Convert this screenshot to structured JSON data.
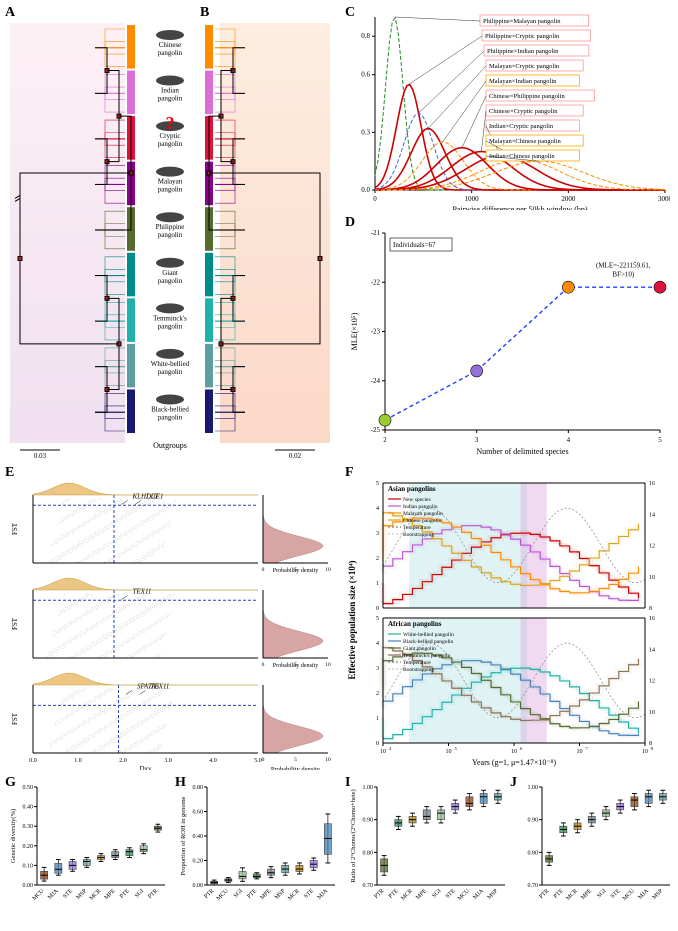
{
  "panels": {
    "A": {
      "label": "A"
    },
    "B": {
      "label": "B"
    },
    "C": {
      "label": "C",
      "ylabel": "",
      "xlabel": "Pairwise difference per 50kb window (bp)",
      "xlim": [
        0,
        3000
      ],
      "ylim": [
        0,
        0.9
      ],
      "xticks": [
        0,
        1000,
        2000,
        3000
      ],
      "yticks": [
        0.0,
        0.3,
        0.6,
        0.8
      ],
      "curves": [
        {
          "peak_x": 200,
          "peak_y": 0.9,
          "color": "#228b22",
          "dash": "4,2",
          "label": "Philippine×Malayan pangolin",
          "box_color": "#f99"
        },
        {
          "peak_x": 350,
          "peak_y": 0.55,
          "color": "#cc0000",
          "dash": "none",
          "label": "Philippine×Cryptic pangolin",
          "box_color": "#f99"
        },
        {
          "peak_x": 450,
          "peak_y": 0.4,
          "color": "#4169e1",
          "dash": "4,2",
          "label": "Philippine×Indian pangolin",
          "box_color": "#f99"
        },
        {
          "peak_x": 550,
          "peak_y": 0.32,
          "color": "#cc0000",
          "dash": "none",
          "label": "Malayan×Cryptic pangolin",
          "box_color": "#f99"
        },
        {
          "peak_x": 700,
          "peak_y": 0.25,
          "color": "#ff8c00",
          "dash": "4,2",
          "label": "Malayan×Indian pangolin",
          "box_color": "#fa0"
        },
        {
          "peak_x": 900,
          "peak_y": 0.22,
          "color": "#cc0000",
          "dash": "none",
          "label": "Chinese×Philippine pangolin",
          "box_color": "#f99"
        },
        {
          "peak_x": 1100,
          "peak_y": 0.2,
          "color": "#cc0000",
          "dash": "none",
          "label": "Chinese×Cryptic pangolin",
          "box_color": "#f99"
        },
        {
          "peak_x": 1300,
          "peak_y": 0.18,
          "color": "#cc0000",
          "dash": "none",
          "label": "Indian×Cryptic pangolin",
          "box_color": "#f99"
        },
        {
          "peak_x": 1500,
          "peak_y": 0.16,
          "color": "#ff8c00",
          "dash": "4,2",
          "label": "Malayan×Chinese pangolin",
          "box_color": "#fa0"
        },
        {
          "peak_x": 1700,
          "peak_y": 0.15,
          "color": "#ff8c00",
          "dash": "4,2",
          "label": "Indian×Chinese pangolin",
          "box_color": "#fa0"
        }
      ]
    },
    "D": {
      "label": "D",
      "ylabel": "MLE(×10⁵)",
      "xlabel": "Number of delimited species",
      "xlim": [
        2,
        5
      ],
      "ylim": [
        -25,
        -21
      ],
      "xticks": [
        2,
        3,
        4,
        5
      ],
      "yticks": [
        -25,
        -24,
        -23,
        -22,
        -21
      ],
      "points": [
        {
          "x": 2,
          "y": -24.8,
          "color": "#9acd32"
        },
        {
          "x": 3,
          "y": -23.8,
          "color": "#9370db"
        },
        {
          "x": 4,
          "y": -22.1,
          "color": "#ff8c00"
        },
        {
          "x": 5,
          "y": -22.1,
          "color": "#dc143c"
        }
      ],
      "annotation": "(MLE=-221159.61,\nBF>10)",
      "box_label": "Individuals=67"
    },
    "E": {
      "label": "E",
      "subplots": [
        {
          "genes": [
            "KLHL10",
            "DCE1"
          ],
          "fst_thresh": 0.85,
          "dxy_thresh": 1.8,
          "ylabel": "FST",
          "xlabel": "Dxy"
        },
        {
          "genes": [
            "TEX11"
          ],
          "fst_thresh": 0.85,
          "dxy_thresh": 1.8,
          "ylabel": "FST",
          "xlabel": "Dxy"
        },
        {
          "genes": [
            "SPATA5",
            "TEX11"
          ],
          "fst_thresh": 0.7,
          "dxy_thresh": 1.9,
          "ylabel": "FST",
          "xlabel": "Dxy"
        }
      ],
      "density_label": "Probability density",
      "xlim": [
        0,
        5
      ],
      "ylim": [
        0,
        1
      ],
      "xticks": [
        0.0,
        1.0,
        2.0,
        3.0,
        4.0,
        5.0
      ],
      "top_color": "#e8b864",
      "side_color": "#c88080"
    },
    "F": {
      "label": "F",
      "ylabel": "Effective population size (×10⁴)",
      "xlabel": "Years (g=1, μ=1.47×10⁻⁸)",
      "xlim_log": [
        4,
        8
      ],
      "ylim": [
        0,
        5
      ],
      "asian": {
        "title": "Asian pangolins",
        "legend": [
          "New species",
          "Indian pangolin",
          "Malayan pangolin",
          "Chinese pangolin",
          "Temperature",
          "Bootstrapping"
        ],
        "colors": [
          "#cc0000",
          "#ba55d3",
          "#ff8c00",
          "#daa520",
          "#888888",
          "#cccccc"
        ]
      },
      "african": {
        "title": "African pangolins",
        "legend": [
          "White-bellied pangolin",
          "Black-bellied pangolin",
          "Giant pangolin",
          "Temminck's pangolin",
          "Temperature",
          "Bootstrapping"
        ],
        "colors": [
          "#20b2aa",
          "#4682b4",
          "#556b2f",
          "#8b7355",
          "#888888",
          "#cccccc"
        ]
      },
      "temp_ylim": [
        8,
        16
      ],
      "shade1": "#b0e0e6",
      "shade2": "#dda0dd"
    },
    "G": {
      "label": "G",
      "ylabel": "Genetic diversity(%)",
      "ylim": [
        0,
        0.5
      ],
      "yticks": [
        0.0,
        0.1,
        0.2,
        0.3,
        0.4,
        0.5
      ],
      "categories": [
        "MCU",
        "MJA",
        "STE",
        "MSP",
        "MCR",
        "MPE",
        "PTE",
        "SGI",
        "PTR"
      ],
      "boxes": [
        {
          "q1": 0.03,
          "med": 0.05,
          "q3": 0.07,
          "lo": 0.02,
          "hi": 0.09,
          "color": "#8b4513"
        },
        {
          "q1": 0.06,
          "med": 0.08,
          "q3": 0.11,
          "lo": 0.05,
          "hi": 0.13,
          "color": "#4682b4"
        },
        {
          "q1": 0.08,
          "med": 0.1,
          "q3": 0.12,
          "lo": 0.07,
          "hi": 0.13,
          "color": "#9370db"
        },
        {
          "q1": 0.1,
          "med": 0.12,
          "q3": 0.13,
          "lo": 0.09,
          "hi": 0.14,
          "color": "#5f9ea0"
        },
        {
          "q1": 0.13,
          "med": 0.14,
          "q3": 0.15,
          "lo": 0.12,
          "hi": 0.16,
          "color": "#b8860b"
        },
        {
          "q1": 0.14,
          "med": 0.15,
          "q3": 0.17,
          "lo": 0.13,
          "hi": 0.18,
          "color": "#708090"
        },
        {
          "q1": 0.15,
          "med": 0.17,
          "q3": 0.18,
          "lo": 0.14,
          "hi": 0.19,
          "color": "#2e8b57"
        },
        {
          "q1": 0.17,
          "med": 0.18,
          "q3": 0.2,
          "lo": 0.16,
          "hi": 0.21,
          "color": "#8fbc8f"
        },
        {
          "q1": 0.28,
          "med": 0.29,
          "q3": 0.3,
          "lo": 0.27,
          "hi": 0.31,
          "color": "#556b2f"
        }
      ]
    },
    "H": {
      "label": "H",
      "ylabel": "Proportion of ROH in genome",
      "ylim": [
        0,
        0.8
      ],
      "yticks": [
        0.0,
        0.2,
        0.4,
        0.6,
        0.8
      ],
      "categories": [
        "PTR",
        "MCU",
        "SGI",
        "PTE",
        "MPE",
        "MSP",
        "MCR",
        "STE",
        "MJA"
      ],
      "boxes": [
        {
          "q1": 0.01,
          "med": 0.02,
          "q3": 0.03,
          "lo": 0.0,
          "hi": 0.04,
          "color": "#556b2f"
        },
        {
          "q1": 0.03,
          "med": 0.04,
          "q3": 0.05,
          "lo": 0.02,
          "hi": 0.06,
          "color": "#8b4513"
        },
        {
          "q1": 0.05,
          "med": 0.07,
          "q3": 0.11,
          "lo": 0.03,
          "hi": 0.14,
          "color": "#8fbc8f"
        },
        {
          "q1": 0.06,
          "med": 0.07,
          "q3": 0.09,
          "lo": 0.05,
          "hi": 0.1,
          "color": "#2e8b57"
        },
        {
          "q1": 0.08,
          "med": 0.1,
          "q3": 0.13,
          "lo": 0.06,
          "hi": 0.15,
          "color": "#708090"
        },
        {
          "q1": 0.1,
          "med": 0.13,
          "q3": 0.16,
          "lo": 0.08,
          "hi": 0.18,
          "color": "#5f9ea0"
        },
        {
          "q1": 0.11,
          "med": 0.13,
          "q3": 0.16,
          "lo": 0.09,
          "hi": 0.18,
          "color": "#b8860b"
        },
        {
          "q1": 0.14,
          "med": 0.17,
          "q3": 0.2,
          "lo": 0.12,
          "hi": 0.22,
          "color": "#9370db"
        },
        {
          "q1": 0.25,
          "med": 0.38,
          "q3": 0.5,
          "lo": 0.18,
          "hi": 0.58,
          "color": "#4682b4"
        }
      ]
    },
    "I": {
      "label": "I",
      "ylabel": "Ratio of 2°Chomo/(2°Chomo+hete)",
      "ylim": [
        0.7,
        1.0
      ],
      "yticks": [
        0.7,
        0.8,
        0.9,
        1.0
      ],
      "categories": [
        "PTR",
        "PTE",
        "MCR",
        "MPE",
        "SGI",
        "STE",
        "MCU",
        "MJA",
        "MSP"
      ],
      "boxes": [
        {
          "q1": 0.74,
          "med": 0.76,
          "q3": 0.78,
          "lo": 0.73,
          "hi": 0.79,
          "color": "#556b2f"
        },
        {
          "q1": 0.88,
          "med": 0.89,
          "q3": 0.9,
          "lo": 0.87,
          "hi": 0.91,
          "color": "#2e8b57"
        },
        {
          "q1": 0.89,
          "med": 0.9,
          "q3": 0.91,
          "lo": 0.88,
          "hi": 0.92,
          "color": "#b8860b"
        },
        {
          "q1": 0.9,
          "med": 0.91,
          "q3": 0.93,
          "lo": 0.89,
          "hi": 0.94,
          "color": "#708090"
        },
        {
          "q1": 0.9,
          "med": 0.92,
          "q3": 0.93,
          "lo": 0.89,
          "hi": 0.94,
          "color": "#8fbc8f"
        },
        {
          "q1": 0.93,
          "med": 0.94,
          "q3": 0.95,
          "lo": 0.92,
          "hi": 0.96,
          "color": "#9370db"
        },
        {
          "q1": 0.94,
          "med": 0.95,
          "q3": 0.97,
          "lo": 0.93,
          "hi": 0.98,
          "color": "#8b4513"
        },
        {
          "q1": 0.95,
          "med": 0.97,
          "q3": 0.98,
          "lo": 0.94,
          "hi": 0.99,
          "color": "#4682b4"
        },
        {
          "q1": 0.96,
          "med": 0.97,
          "q3": 0.98,
          "lo": 0.95,
          "hi": 0.99,
          "color": "#5f9ea0"
        }
      ]
    },
    "J": {
      "label": "J",
      "ylabel": "",
      "ylim": [
        0.7,
        1.0
      ],
      "yticks": [
        0.7,
        0.8,
        0.9,
        1.0
      ],
      "categories": [
        "PTR",
        "PTE",
        "MCR",
        "MPE",
        "SGI",
        "STE",
        "MCU",
        "MJA",
        "MSP"
      ],
      "boxes": [
        {
          "q1": 0.77,
          "med": 0.78,
          "q3": 0.79,
          "lo": 0.76,
          "hi": 0.8,
          "color": "#556b2f"
        },
        {
          "q1": 0.86,
          "med": 0.87,
          "q3": 0.88,
          "lo": 0.85,
          "hi": 0.89,
          "color": "#2e8b57"
        },
        {
          "q1": 0.87,
          "med": 0.88,
          "q3": 0.89,
          "lo": 0.86,
          "hi": 0.9,
          "color": "#b8860b"
        },
        {
          "q1": 0.89,
          "med": 0.9,
          "q3": 0.91,
          "lo": 0.88,
          "hi": 0.92,
          "color": "#708090"
        },
        {
          "q1": 0.91,
          "med": 0.92,
          "q3": 0.93,
          "lo": 0.9,
          "hi": 0.94,
          "color": "#8fbc8f"
        },
        {
          "q1": 0.93,
          "med": 0.94,
          "q3": 0.95,
          "lo": 0.92,
          "hi": 0.96,
          "color": "#9370db"
        },
        {
          "q1": 0.94,
          "med": 0.96,
          "q3": 0.97,
          "lo": 0.93,
          "hi": 0.98,
          "color": "#8b4513"
        },
        {
          "q1": 0.95,
          "med": 0.97,
          "q3": 0.98,
          "lo": 0.94,
          "hi": 0.99,
          "color": "#4682b4"
        },
        {
          "q1": 0.96,
          "med": 0.97,
          "q3": 0.98,
          "lo": 0.95,
          "hi": 0.99,
          "color": "#5f9ea0"
        }
      ]
    }
  },
  "species": [
    {
      "name": "Chinese\npangolin",
      "color": "#ff8c00"
    },
    {
      "name": "Indian\npangolin",
      "color": "#da70d6"
    },
    {
      "name": "Cryptic\npangolin",
      "color": "#dc143c"
    },
    {
      "name": "Malayan\npangolin",
      "color": "#8b008b"
    },
    {
      "name": "Philippine\npangolin",
      "color": "#556b2f"
    },
    {
      "name": "Giant\npangolin",
      "color": "#008b8b"
    },
    {
      "name": "Temminck's\npangolin",
      "color": "#20b2aa"
    },
    {
      "name": "White-bellied\npangolin",
      "color": "#5f9ea0"
    },
    {
      "name": "Black-bellied\npangolin",
      "color": "#191970"
    }
  ],
  "outgroups_label": "Outgroups",
  "scale_left": "0.03",
  "scale_right": "0.02",
  "tree_colors": {
    "left_bg_top": "#f8e8f0",
    "left_bg_bot": "#e8d8e8",
    "right_bg_top": "#fde8d8",
    "right_bg_bot": "#fdd0c0"
  }
}
